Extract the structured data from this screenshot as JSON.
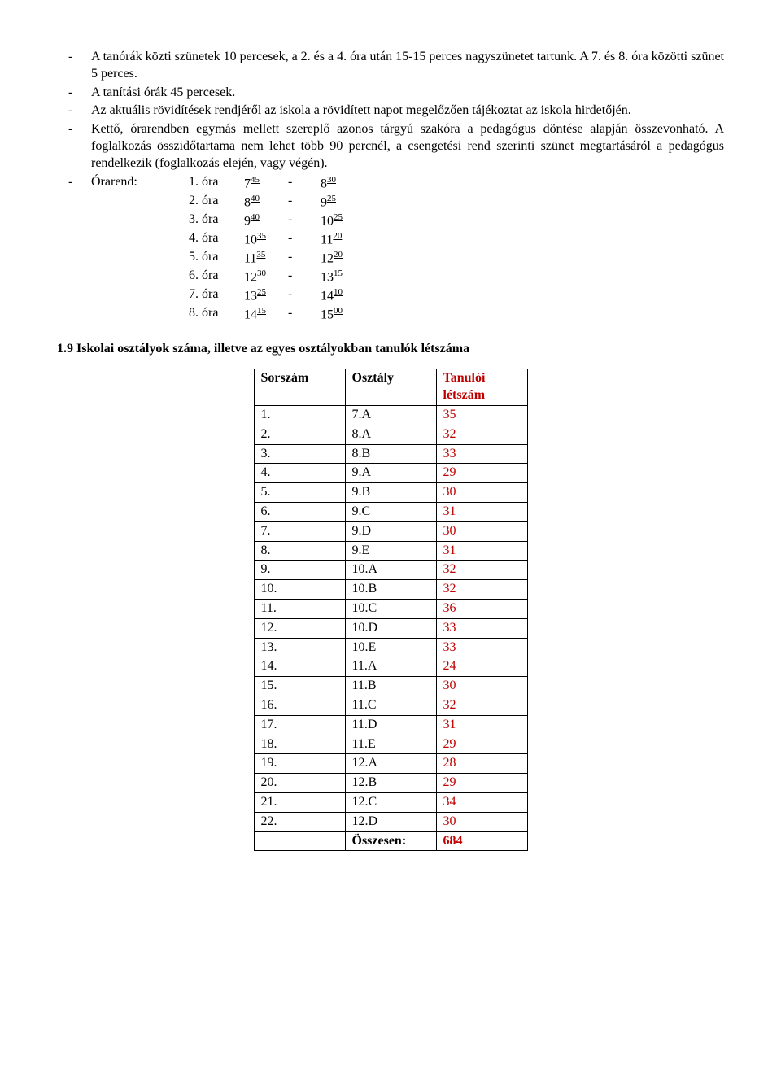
{
  "bullets": [
    "A tanórák közti szünetek 10 percesek, a 2. és a 4. óra után 15-15 perces nagyszünetet tartunk. A 7. és 8. óra közötti szünet 5 perces.",
    "A tanítási órák 45 percesek.",
    "Az aktuális rövidítések rendjéről az iskola a rövidített napot megelőzően tájékoztat az iskola hirdetőjén.",
    "Kettő, órarendben egymás mellett szereplő azonos tárgyú szakóra a pedagógus döntése alapján összevonható. A foglalkozás összidőtartama nem lehet több 90 percnél, a csengetési rend szerinti szünet megtartásáról a pedagógus rendelkezik (foglalkozás elején, vagy végén)."
  ],
  "schedule": {
    "label": "Órarend:",
    "rows": [
      {
        "n": "1. óra",
        "sh": "7",
        "sm": "45",
        "eh": "8",
        "em": "30"
      },
      {
        "n": "2. óra",
        "sh": "8",
        "sm": "40",
        "eh": "9",
        "em": "25"
      },
      {
        "n": "3. óra",
        "sh": "9",
        "sm": "40",
        "eh": "10",
        "em": "25"
      },
      {
        "n": "4. óra",
        "sh": "10",
        "sm": "35",
        "eh": "11",
        "em": "20"
      },
      {
        "n": "5. óra",
        "sh": "11",
        "sm": "35",
        "eh": "12",
        "em": "20"
      },
      {
        "n": "6. óra",
        "sh": "12",
        "sm": "30",
        "eh": "13",
        "em": "15"
      },
      {
        "n": "7. óra",
        "sh": "13",
        "sm": "25",
        "eh": "14",
        "em": "10"
      },
      {
        "n": "8. óra",
        "sh": "14",
        "sm": "15",
        "eh": "15",
        "em": "00"
      }
    ]
  },
  "section_title": "1.9 Iskolai osztályok száma, illetve az egyes osztályokban tanulók létszáma",
  "table": {
    "headers": {
      "sor": "Sorszám",
      "oszt": "Osztály",
      "let": "Tanulói létszám"
    },
    "rows": [
      {
        "s": "1.",
        "o": "7.A",
        "l": "35"
      },
      {
        "s": "2.",
        "o": "8.A",
        "l": "32"
      },
      {
        "s": "3.",
        "o": "8.B",
        "l": "33"
      },
      {
        "s": "4.",
        "o": "9.A",
        "l": "29"
      },
      {
        "s": "5.",
        "o": "9.B",
        "l": "30"
      },
      {
        "s": "6.",
        "o": "9.C",
        "l": "31"
      },
      {
        "s": "7.",
        "o": "9.D",
        "l": "30"
      },
      {
        "s": "8.",
        "o": "9.E",
        "l": "31"
      },
      {
        "s": "9.",
        "o": "10.A",
        "l": "32"
      },
      {
        "s": "10.",
        "o": "10.B",
        "l": "32"
      },
      {
        "s": "11.",
        "o": "10.C",
        "l": "36"
      },
      {
        "s": "12.",
        "o": "10.D",
        "l": "33"
      },
      {
        "s": "13.",
        "o": "10.E",
        "l": "33"
      },
      {
        "s": "14.",
        "o": "11.A",
        "l": "24"
      },
      {
        "s": "15.",
        "o": "11.B",
        "l": "30"
      },
      {
        "s": "16.",
        "o": "11.C",
        "l": "32"
      },
      {
        "s": "17.",
        "o": "11.D",
        "l": "31"
      },
      {
        "s": "18.",
        "o": "11.E",
        "l": "29"
      },
      {
        "s": "19.",
        "o": "12.A",
        "l": "28"
      },
      {
        "s": "20.",
        "o": "12.B",
        "l": "29"
      },
      {
        "s": "21.",
        "o": "12.C",
        "l": "34"
      },
      {
        "s": "22.",
        "o": "12.D",
        "l": "30"
      }
    ],
    "total_label": "Összesen:",
    "total_value": "684"
  },
  "colors": {
    "red": "#c00000",
    "text": "#000000",
    "bg": "#ffffff",
    "border": "#000000"
  }
}
